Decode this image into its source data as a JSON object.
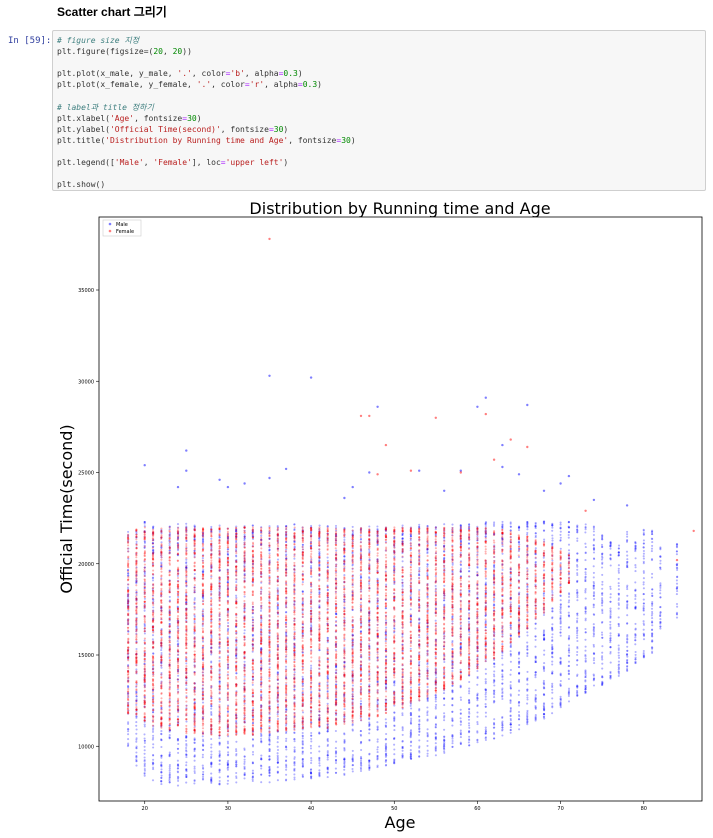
{
  "notebook": {
    "heading": "Scatter chart 그리기",
    "prompt": "In [59]:",
    "code_lines": [
      [
        {
          "t": "# figure size 지정",
          "c": "cm"
        }
      ],
      [
        {
          "t": "plt.figure(figsize=("
        },
        {
          "t": "20",
          "c": "nu"
        },
        {
          "t": ", "
        },
        {
          "t": "20",
          "c": "nu"
        },
        {
          "t": "))"
        }
      ],
      [],
      [
        {
          "t": "plt.plot(x_male, y_male, "
        },
        {
          "t": "'.'",
          "c": "st"
        },
        {
          "t": ", color"
        },
        {
          "t": "=",
          "c": "op"
        },
        {
          "t": "'b'",
          "c": "st"
        },
        {
          "t": ", alpha"
        },
        {
          "t": "=",
          "c": "op"
        },
        {
          "t": "0.3",
          "c": "nu"
        },
        {
          "t": ")"
        }
      ],
      [
        {
          "t": "plt.plot(x_female, y_female, "
        },
        {
          "t": "'.'",
          "c": "st"
        },
        {
          "t": ", color"
        },
        {
          "t": "=",
          "c": "op"
        },
        {
          "t": "'r'",
          "c": "st"
        },
        {
          "t": ", alpha"
        },
        {
          "t": "=",
          "c": "op"
        },
        {
          "t": "0.3",
          "c": "nu"
        },
        {
          "t": ")"
        }
      ],
      [],
      [
        {
          "t": "# label과 title 정하기",
          "c": "cm"
        }
      ],
      [
        {
          "t": "plt.xlabel("
        },
        {
          "t": "'Age'",
          "c": "st"
        },
        {
          "t": ", fontsize"
        },
        {
          "t": "=",
          "c": "op"
        },
        {
          "t": "30",
          "c": "nu"
        },
        {
          "t": ")"
        }
      ],
      [
        {
          "t": "plt.ylabel("
        },
        {
          "t": "'Official Time(second)'",
          "c": "st"
        },
        {
          "t": ", fontsize"
        },
        {
          "t": "=",
          "c": "op"
        },
        {
          "t": "30",
          "c": "nu"
        },
        {
          "t": ")"
        }
      ],
      [
        {
          "t": "plt.title("
        },
        {
          "t": "'Distribution by Running time and Age'",
          "c": "st"
        },
        {
          "t": ", fontsize"
        },
        {
          "t": "=",
          "c": "op"
        },
        {
          "t": "30",
          "c": "nu"
        },
        {
          "t": ")"
        }
      ],
      [],
      [
        {
          "t": "plt.legend(["
        },
        {
          "t": "'Male'",
          "c": "st"
        },
        {
          "t": ", "
        },
        {
          "t": "'Female'",
          "c": "st"
        },
        {
          "t": "], loc"
        },
        {
          "t": "=",
          "c": "op"
        },
        {
          "t": "'upper left'",
          "c": "st"
        },
        {
          "t": ")"
        }
      ],
      [],
      [
        {
          "t": "plt.show()"
        }
      ]
    ]
  },
  "chart_data": {
    "type": "scatter",
    "title": "Distribution by Running time and Age",
    "xlabel": "Age",
    "ylabel": "Official Time(second)",
    "xlim": [
      14.5,
      87
    ],
    "ylim": [
      7000,
      39000
    ],
    "xticks": [
      20,
      30,
      40,
      50,
      60,
      70,
      80
    ],
    "yticks": [
      10000,
      15000,
      20000,
      25000,
      30000,
      35000
    ],
    "grid": false,
    "legend": {
      "loc": "upper left",
      "entries": [
        {
          "label": "Male",
          "color": "#0000ff"
        },
        {
          "label": "Female",
          "color": "#ff0000"
        }
      ]
    },
    "alpha": 0.3,
    "series": [
      {
        "name": "Male",
        "color": "#0000ff",
        "columns": [
          [
            18,
            9900,
            21800
          ],
          [
            19,
            8600,
            22100
          ],
          [
            20,
            8300,
            22300
          ],
          [
            21,
            8000,
            22200
          ],
          [
            22,
            7900,
            22100
          ],
          [
            23,
            7900,
            22100
          ],
          [
            24,
            7800,
            22200
          ],
          [
            25,
            7800,
            22200
          ],
          [
            26,
            7900,
            22100
          ],
          [
            27,
            7900,
            22100
          ],
          [
            28,
            7900,
            22100
          ],
          [
            29,
            7900,
            22100
          ],
          [
            30,
            7900,
            22100
          ],
          [
            31,
            7900,
            22100
          ],
          [
            32,
            8000,
            22100
          ],
          [
            33,
            8000,
            22100
          ],
          [
            34,
            8000,
            22100
          ],
          [
            35,
            8000,
            22100
          ],
          [
            36,
            8100,
            22100
          ],
          [
            37,
            8100,
            22100
          ],
          [
            38,
            8100,
            22200
          ],
          [
            39,
            8200,
            22100
          ],
          [
            40,
            8200,
            22100
          ],
          [
            41,
            8300,
            22100
          ],
          [
            42,
            8300,
            22100
          ],
          [
            43,
            8400,
            22100
          ],
          [
            44,
            8400,
            22100
          ],
          [
            45,
            8500,
            22100
          ],
          [
            46,
            8600,
            22100
          ],
          [
            47,
            8700,
            22100
          ],
          [
            48,
            8800,
            22100
          ],
          [
            49,
            8900,
            22100
          ],
          [
            50,
            9000,
            22100
          ],
          [
            51,
            9100,
            22100
          ],
          [
            52,
            9200,
            22100
          ],
          [
            53,
            9300,
            22200
          ],
          [
            54,
            9400,
            22200
          ],
          [
            55,
            9500,
            22200
          ],
          [
            56,
            9600,
            22200
          ],
          [
            57,
            9700,
            22200
          ],
          [
            58,
            9900,
            22300
          ],
          [
            59,
            10000,
            22200
          ],
          [
            60,
            10100,
            22300
          ],
          [
            61,
            10200,
            22300
          ],
          [
            62,
            10400,
            22300
          ],
          [
            63,
            10500,
            22300
          ],
          [
            64,
            10700,
            22300
          ],
          [
            65,
            10900,
            22200
          ],
          [
            66,
            11100,
            22300
          ],
          [
            67,
            11300,
            22300
          ],
          [
            68,
            11500,
            22400
          ],
          [
            69,
            11800,
            22200
          ],
          [
            70,
            12100,
            22300
          ],
          [
            71,
            12300,
            22300
          ],
          [
            72,
            12600,
            22200
          ],
          [
            73,
            12900,
            22200
          ],
          [
            74,
            13200,
            22100
          ],
          [
            75,
            13300,
            21600
          ],
          [
            76,
            13600,
            21300
          ],
          [
            77,
            13800,
            21000
          ],
          [
            78,
            14100,
            21800
          ],
          [
            79,
            14500,
            21200
          ],
          [
            80,
            14800,
            21900
          ],
          [
            81,
            15100,
            21900
          ],
          [
            82,
            16300,
            20900
          ],
          [
            84,
            17000,
            21100
          ]
        ],
        "outliers": [
          [
            20,
            25400
          ],
          [
            24,
            24200
          ],
          [
            25,
            26200
          ],
          [
            25,
            25100
          ],
          [
            29,
            24600
          ],
          [
            30,
            24200
          ],
          [
            32,
            24400
          ],
          [
            35,
            30300
          ],
          [
            35,
            24700
          ],
          [
            37,
            25200
          ],
          [
            40,
            30200
          ],
          [
            44,
            23600
          ],
          [
            45,
            24200
          ],
          [
            47,
            25000
          ],
          [
            48,
            28600
          ],
          [
            53,
            25100
          ],
          [
            56,
            24000
          ],
          [
            58,
            25100
          ],
          [
            60,
            28600
          ],
          [
            61,
            29100
          ],
          [
            63,
            26500
          ],
          [
            63,
            25300
          ],
          [
            65,
            24900
          ],
          [
            66,
            28700
          ],
          [
            68,
            24000
          ],
          [
            70,
            24400
          ],
          [
            71,
            24800
          ],
          [
            74,
            23500
          ],
          [
            78,
            23200
          ]
        ]
      },
      {
        "name": "Female",
        "color": "#ff0000",
        "columns": [
          [
            18,
            11800,
            21700
          ],
          [
            19,
            11600,
            21900
          ],
          [
            20,
            11300,
            22000
          ],
          [
            21,
            11100,
            22000
          ],
          [
            22,
            11000,
            22000
          ],
          [
            23,
            10900,
            22000
          ],
          [
            24,
            10800,
            22000
          ],
          [
            25,
            10700,
            22000
          ],
          [
            26,
            10700,
            22000
          ],
          [
            27,
            10600,
            22000
          ],
          [
            28,
            10600,
            22000
          ],
          [
            29,
            10600,
            22000
          ],
          [
            30,
            10600,
            22000
          ],
          [
            31,
            10600,
            22000
          ],
          [
            32,
            10600,
            22000
          ],
          [
            33,
            10600,
            22000
          ],
          [
            34,
            10700,
            22000
          ],
          [
            35,
            10700,
            22000
          ],
          [
            36,
            10700,
            22000
          ],
          [
            37,
            10800,
            22000
          ],
          [
            38,
            10800,
            22000
          ],
          [
            39,
            10900,
            22000
          ],
          [
            40,
            10900,
            22000
          ],
          [
            41,
            11000,
            22000
          ],
          [
            42,
            11000,
            22000
          ],
          [
            43,
            11100,
            22000
          ],
          [
            44,
            11200,
            22000
          ],
          [
            45,
            11300,
            22000
          ],
          [
            46,
            11400,
            22000
          ],
          [
            47,
            11500,
            22000
          ],
          [
            48,
            11600,
            22000
          ],
          [
            49,
            11800,
            22000
          ],
          [
            50,
            12000,
            22000
          ],
          [
            51,
            12100,
            22000
          ],
          [
            52,
            12300,
            22000
          ],
          [
            53,
            12500,
            22000
          ],
          [
            54,
            12700,
            22000
          ],
          [
            55,
            12900,
            22000
          ],
          [
            56,
            13100,
            22000
          ],
          [
            57,
            13300,
            22000
          ],
          [
            58,
            13600,
            22000
          ],
          [
            59,
            13900,
            22000
          ],
          [
            60,
            14200,
            22000
          ],
          [
            61,
            14500,
            22000
          ],
          [
            62,
            14800,
            21900
          ],
          [
            63,
            15200,
            21900
          ],
          [
            64,
            15600,
            21800
          ],
          [
            65,
            16000,
            21700
          ],
          [
            66,
            16400,
            21500
          ],
          [
            67,
            16900,
            21300
          ],
          [
            68,
            17300,
            21200
          ],
          [
            69,
            17900,
            21000
          ],
          [
            70,
            18400,
            20700
          ],
          [
            71,
            18900,
            20500
          ]
        ],
        "outliers": [
          [
            35,
            37800
          ],
          [
            46,
            28100
          ],
          [
            47,
            28100
          ],
          [
            48,
            24900
          ],
          [
            49,
            26500
          ],
          [
            52,
            25100
          ],
          [
            55,
            28000
          ],
          [
            58,
            25000
          ],
          [
            61,
            28200
          ],
          [
            62,
            25700
          ],
          [
            64,
            26800
          ],
          [
            66,
            26400
          ],
          [
            73,
            22900
          ],
          [
            86,
            21800
          ],
          [
            84,
            20200
          ]
        ]
      }
    ]
  }
}
